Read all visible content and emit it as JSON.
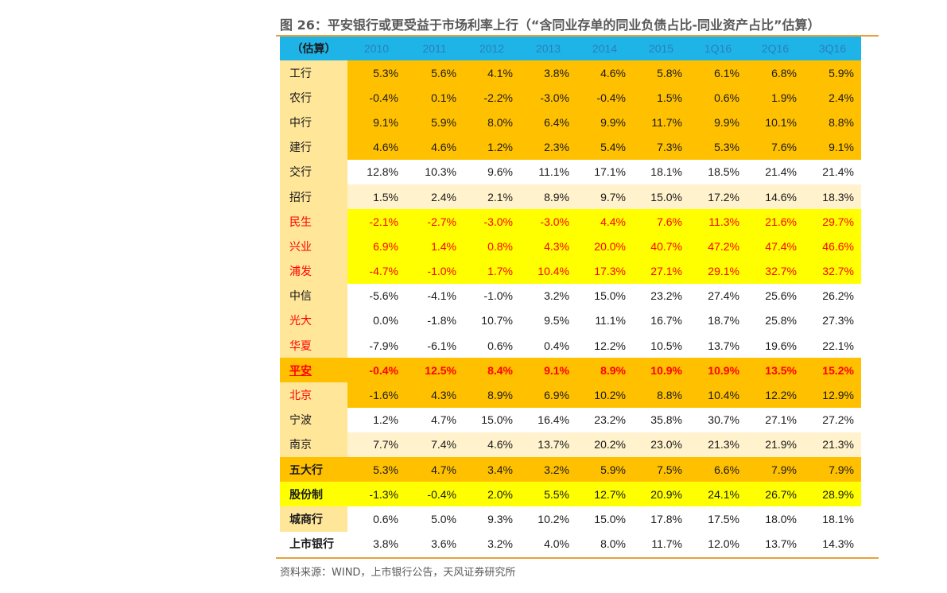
{
  "title": "图 26：平安银行或更受益于市场利率上行（“含同业存单的同业负债占比-同业资产占比”估算）",
  "source": "资料来源：WIND，上市银行公告，天风证券研究所",
  "table": {
    "corner": "（估算）",
    "columns": [
      "2010",
      "2011",
      "2012",
      "2013",
      "2014",
      "2015",
      "1Q16",
      "2Q16",
      "3Q16"
    ],
    "rows": [
      {
        "name": "工行",
        "values": [
          "5.3%",
          "5.6%",
          "4.1%",
          "3.8%",
          "4.6%",
          "5.8%",
          "6.1%",
          "6.8%",
          "5.9%"
        ],
        "label_bg": "#ffe699",
        "bg": "#ffc000",
        "color": "#1a1a1a",
        "bold": false
      },
      {
        "name": "农行",
        "values": [
          "-0.4%",
          "0.1%",
          "-2.2%",
          "-3.0%",
          "-0.4%",
          "1.5%",
          "0.6%",
          "1.9%",
          "2.4%"
        ],
        "label_bg": "#ffe699",
        "bg": "#ffc000",
        "color": "#1a1a1a",
        "bold": false
      },
      {
        "name": "中行",
        "values": [
          "9.1%",
          "5.9%",
          "8.0%",
          "6.4%",
          "9.9%",
          "11.7%",
          "9.9%",
          "10.1%",
          "8.8%"
        ],
        "label_bg": "#ffe699",
        "bg": "#ffc000",
        "color": "#1a1a1a",
        "bold": false
      },
      {
        "name": "建行",
        "values": [
          "4.6%",
          "4.6%",
          "1.2%",
          "2.3%",
          "5.4%",
          "7.3%",
          "5.3%",
          "7.6%",
          "9.1%"
        ],
        "label_bg": "#ffe699",
        "bg": "#ffc000",
        "color": "#1a1a1a",
        "bold": false
      },
      {
        "name": "交行",
        "values": [
          "12.8%",
          "10.3%",
          "9.6%",
          "11.1%",
          "17.1%",
          "18.1%",
          "18.5%",
          "21.4%",
          "21.4%"
        ],
        "label_bg": "#ffe699",
        "bg": "#ffffff",
        "color": "#1a1a1a",
        "bold": false
      },
      {
        "name": "招行",
        "values": [
          "1.5%",
          "2.4%",
          "2.1%",
          "8.9%",
          "9.7%",
          "15.0%",
          "17.2%",
          "14.6%",
          "18.3%"
        ],
        "label_bg": "#ffe699",
        "bg": "#fff2cc",
        "color": "#1a1a1a",
        "bold": false
      },
      {
        "name": "民生",
        "values": [
          "-2.1%",
          "-2.7%",
          "-3.0%",
          "-3.0%",
          "4.4%",
          "7.6%",
          "11.3%",
          "21.6%",
          "29.7%"
        ],
        "label_bg": "#ffe699",
        "bg": "#ffff00",
        "color": "#ff0000",
        "bold": false
      },
      {
        "name": "兴业",
        "values": [
          "6.9%",
          "1.4%",
          "0.8%",
          "4.3%",
          "20.0%",
          "40.7%",
          "47.2%",
          "47.4%",
          "46.6%"
        ],
        "label_bg": "#ffe699",
        "bg": "#ffff00",
        "color": "#ff0000",
        "bold": false
      },
      {
        "name": "浦发",
        "values": [
          "-4.7%",
          "-1.0%",
          "1.7%",
          "10.4%",
          "17.3%",
          "27.1%",
          "29.1%",
          "32.7%",
          "32.7%"
        ],
        "label_bg": "#ffe699",
        "bg": "#ffff00",
        "color": "#ff0000",
        "bold": false
      },
      {
        "name": "中信",
        "values": [
          "-5.6%",
          "-4.1%",
          "-1.0%",
          "3.2%",
          "15.0%",
          "23.2%",
          "27.4%",
          "25.6%",
          "26.2%"
        ],
        "label_bg": "#ffe699",
        "bg": "#ffffff",
        "color": "#1a1a1a",
        "bold": false
      },
      {
        "name": "光大",
        "values": [
          "0.0%",
          "-1.8%",
          "10.7%",
          "9.5%",
          "11.1%",
          "16.7%",
          "18.7%",
          "25.8%",
          "27.3%"
        ],
        "label_bg": "#ffe699",
        "bg": "#ffffff",
        "color": "#1a1a1a",
        "name_color": "#ff0000",
        "bold": false
      },
      {
        "name": "华夏",
        "values": [
          "-7.9%",
          "-6.1%",
          "0.6%",
          "0.4%",
          "12.2%",
          "10.5%",
          "13.7%",
          "19.6%",
          "22.1%"
        ],
        "label_bg": "#ffe699",
        "bg": "#ffffff",
        "color": "#1a1a1a",
        "name_color": "#ff0000",
        "bold": false
      },
      {
        "name": "平安",
        "values": [
          "-0.4%",
          "12.5%",
          "8.4%",
          "9.1%",
          "8.9%",
          "10.9%",
          "10.9%",
          "13.5%",
          "15.2%"
        ],
        "label_bg": "#ffc000",
        "bg": "#ffc000",
        "color": "#ff0000",
        "bold": true,
        "underline": true
      },
      {
        "name": "北京",
        "values": [
          "-1.6%",
          "4.3%",
          "8.9%",
          "6.9%",
          "10.2%",
          "8.8%",
          "10.4%",
          "12.2%",
          "12.9%"
        ],
        "label_bg": "#ffe699",
        "bg": "#ffc000",
        "color": "#1a1a1a",
        "name_color": "#ff0000",
        "bold": false
      },
      {
        "name": "宁波",
        "values": [
          "1.2%",
          "4.7%",
          "15.0%",
          "16.4%",
          "23.2%",
          "35.8%",
          "30.7%",
          "27.1%",
          "27.2%"
        ],
        "label_bg": "#ffe699",
        "bg": "#ffffff",
        "color": "#1a1a1a",
        "bold": false
      },
      {
        "name": "南京",
        "values": [
          "7.7%",
          "7.4%",
          "4.6%",
          "13.7%",
          "20.2%",
          "23.0%",
          "21.3%",
          "21.9%",
          "21.3%"
        ],
        "label_bg": "#ffe699",
        "bg": "#fff2cc",
        "color": "#1a1a1a",
        "bold": false
      },
      {
        "name": "五大行",
        "values": [
          "5.3%",
          "4.7%",
          "3.4%",
          "3.2%",
          "5.9%",
          "7.5%",
          "6.6%",
          "7.9%",
          "7.9%"
        ],
        "label_bg": "#ffc000",
        "bg": "#ffc000",
        "color": "#1a1a1a",
        "bold": false,
        "name_bold": true
      },
      {
        "name": "股份制",
        "values": [
          "-1.3%",
          "-0.4%",
          "2.0%",
          "5.5%",
          "12.7%",
          "20.9%",
          "24.1%",
          "26.7%",
          "28.9%"
        ],
        "label_bg": "#ffff00",
        "bg": "#ffff00",
        "color": "#1a1a1a",
        "bold": false,
        "name_bold": true
      },
      {
        "name": "城商行",
        "values": [
          "0.6%",
          "5.0%",
          "9.3%",
          "10.2%",
          "15.0%",
          "17.8%",
          "17.5%",
          "18.0%",
          "18.1%"
        ],
        "label_bg": "#ffe699",
        "bg": "#ffffff",
        "color": "#1a1a1a",
        "bold": false,
        "name_bold": true
      },
      {
        "name": "上市银行",
        "values": [
          "3.8%",
          "3.6%",
          "3.2%",
          "4.0%",
          "8.0%",
          "11.7%",
          "12.0%",
          "13.7%",
          "14.3%"
        ],
        "label_bg": "#ffffff",
        "bg": "#ffffff",
        "color": "#1a1a1a",
        "bold": false,
        "name_bold": true
      }
    ]
  }
}
